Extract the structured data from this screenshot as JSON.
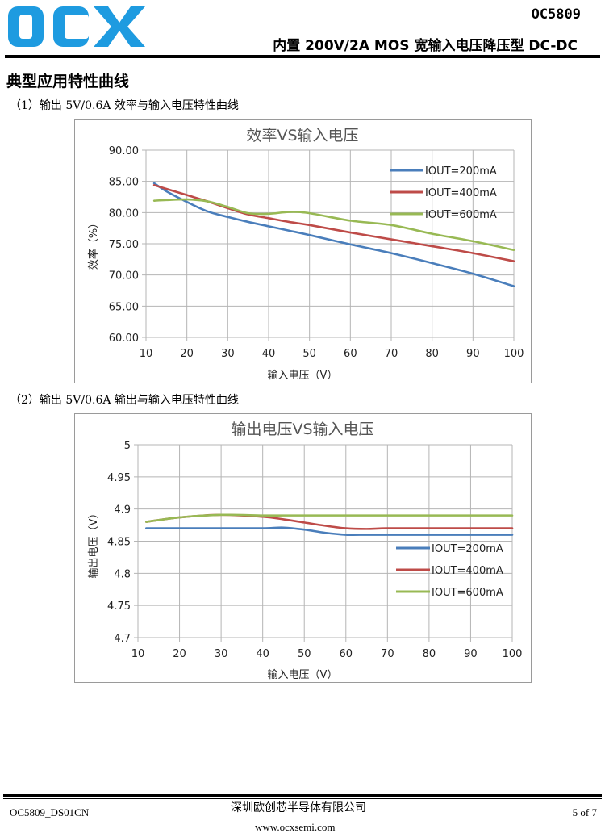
{
  "header": {
    "logo_text": "OCX",
    "part_number": "OC5809",
    "subtitle": "内置 200V/2A MOS 宽输入电压降压型 DC-DC"
  },
  "section_title": "典型应用特性曲线",
  "captions": [
    "（1）输出 5V/0.6A 效率与输入电压特性曲线",
    "（2）输出 5V/0.6A 输出与输入电压特性曲线"
  ],
  "colors": {
    "blue": "#4a7ebb",
    "red": "#be4b48",
    "green": "#98b954",
    "logo": "#1e9be0"
  },
  "chart_data": [
    {
      "type": "line",
      "title": "效率VS输入电压",
      "xlabel": "输入电压（V）",
      "ylabel": "效率（%）",
      "xlim": [
        10,
        100
      ],
      "ylim": [
        60,
        90
      ],
      "grid": true,
      "legend": "top-right",
      "xticks": [
        "10",
        "20",
        "30",
        "40",
        "50",
        "60",
        "70",
        "80",
        "90",
        "100"
      ],
      "yticks": [
        "60.00",
        "65.00",
        "70.00",
        "75.00",
        "80.00",
        "85.00",
        "90.00"
      ],
      "x": [
        12,
        15,
        20,
        25,
        30,
        35,
        40,
        45,
        50,
        60,
        70,
        80,
        90,
        100
      ],
      "series": [
        {
          "name": "IOUT=200mA",
          "color": "#4a7ebb",
          "values": [
            84.7,
            83.4,
            81.7,
            80.2,
            79.3,
            78.5,
            77.8,
            77.1,
            76.4,
            74.9,
            73.5,
            71.9,
            70.2,
            68.2
          ]
        },
        {
          "name": "IOUT=400mA",
          "color": "#be4b48",
          "values": [
            84.4,
            83.8,
            82.8,
            81.8,
            80.7,
            79.7,
            79.1,
            78.5,
            78.0,
            76.8,
            75.7,
            74.6,
            73.5,
            72.2
          ]
        },
        {
          "name": "IOUT=600mA",
          "color": "#98b954",
          "values": [
            81.9,
            82.0,
            82.1,
            81.8,
            80.9,
            79.9,
            79.8,
            80.1,
            79.9,
            78.7,
            78.0,
            76.6,
            75.4,
            74.0
          ]
        }
      ]
    },
    {
      "type": "line",
      "title": "输出电压VS输入电压",
      "xlabel": "输入电压（V）",
      "ylabel": "输出电压（V）",
      "xlim": [
        10,
        100
      ],
      "ylim": [
        4.7,
        5
      ],
      "grid": true,
      "legend": "right",
      "xticks": [
        "10",
        "20",
        "30",
        "40",
        "50",
        "60",
        "70",
        "80",
        "90",
        "100"
      ],
      "yticks": [
        "4.7",
        "4.75",
        "4.8",
        "4.85",
        "4.9",
        "4.95",
        "5"
      ],
      "x": [
        12,
        20,
        30,
        40,
        45,
        50,
        55,
        60,
        65,
        70,
        80,
        90,
        100
      ],
      "series": [
        {
          "name": "IOUT=200mA",
          "color": "#4a7ebb",
          "values": [
            4.87,
            4.87,
            4.87,
            4.87,
            4.871,
            4.868,
            4.863,
            4.86,
            4.86,
            4.86,
            4.86,
            4.86,
            4.86
          ]
        },
        {
          "name": "IOUT=400mA",
          "color": "#be4b48",
          "values": [
            4.88,
            4.887,
            4.891,
            4.888,
            4.884,
            4.879,
            4.874,
            4.87,
            4.869,
            4.87,
            4.87,
            4.87,
            4.87
          ]
        },
        {
          "name": "IOUT=600mA",
          "color": "#98b954",
          "values": [
            4.88,
            4.887,
            4.891,
            4.89,
            4.89,
            4.89,
            4.89,
            4.89,
            4.89,
            4.89,
            4.89,
            4.89,
            4.89
          ]
        }
      ]
    }
  ],
  "footer": {
    "doc_id": "OC5809_DS01CN",
    "company": "深圳欧创芯半导体有限公司",
    "page": "5 of 7",
    "website": "www.ocxsemi.com"
  }
}
